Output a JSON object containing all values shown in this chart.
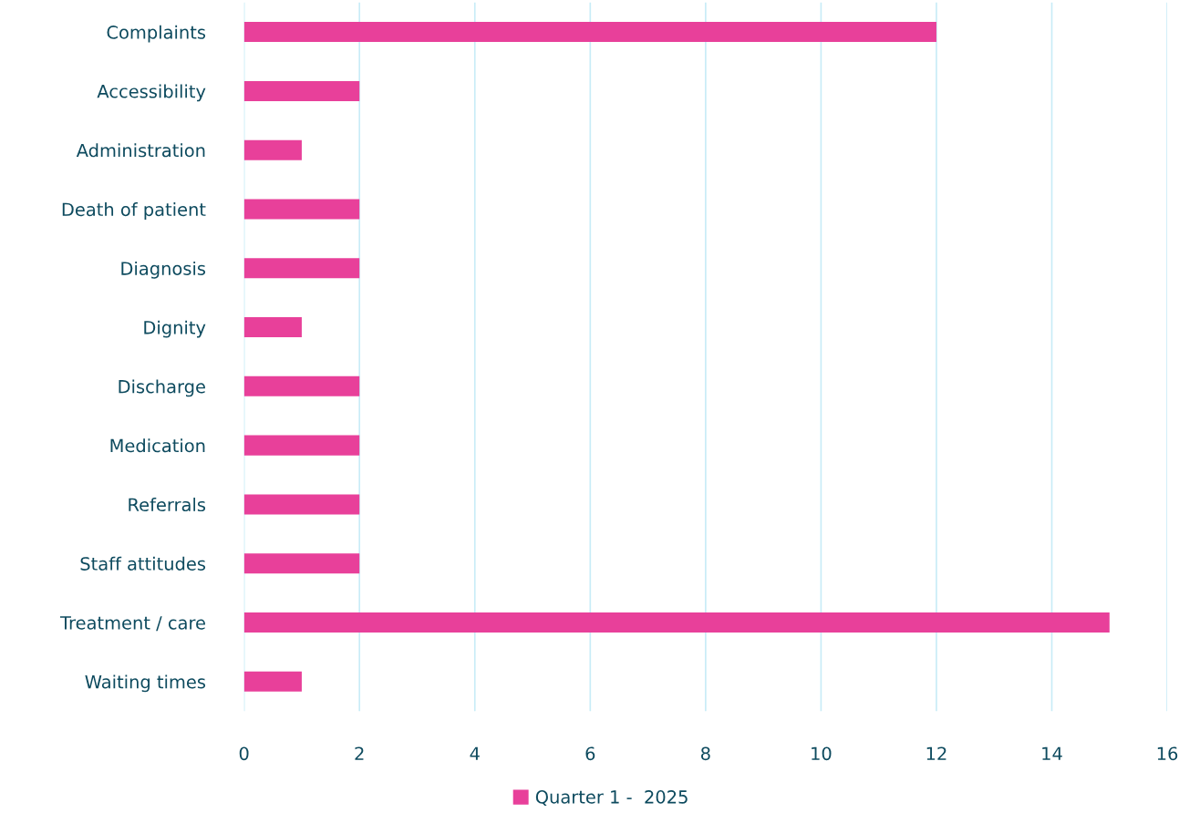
{
  "chart_data": {
    "type": "bar",
    "orientation": "horizontal",
    "categories": [
      "Complaints",
      "Accessibility",
      "Administration",
      "Death of patient",
      "Diagnosis",
      "Dignity",
      "Discharge",
      "Medication",
      "Referrals",
      "Staff attitudes",
      "Treatment / care",
      "Waiting times"
    ],
    "series": [
      {
        "name": "Quarter 1 -  2025",
        "color": "#e8409a",
        "values": [
          12,
          2,
          1,
          2,
          2,
          1,
          2,
          2,
          2,
          2,
          15,
          1
        ]
      }
    ],
    "xlim": [
      0,
      16
    ],
    "xticks": [
      0,
      2,
      4,
      6,
      8,
      10,
      12,
      14,
      16
    ],
    "grid": "x",
    "legend": "bottom"
  }
}
